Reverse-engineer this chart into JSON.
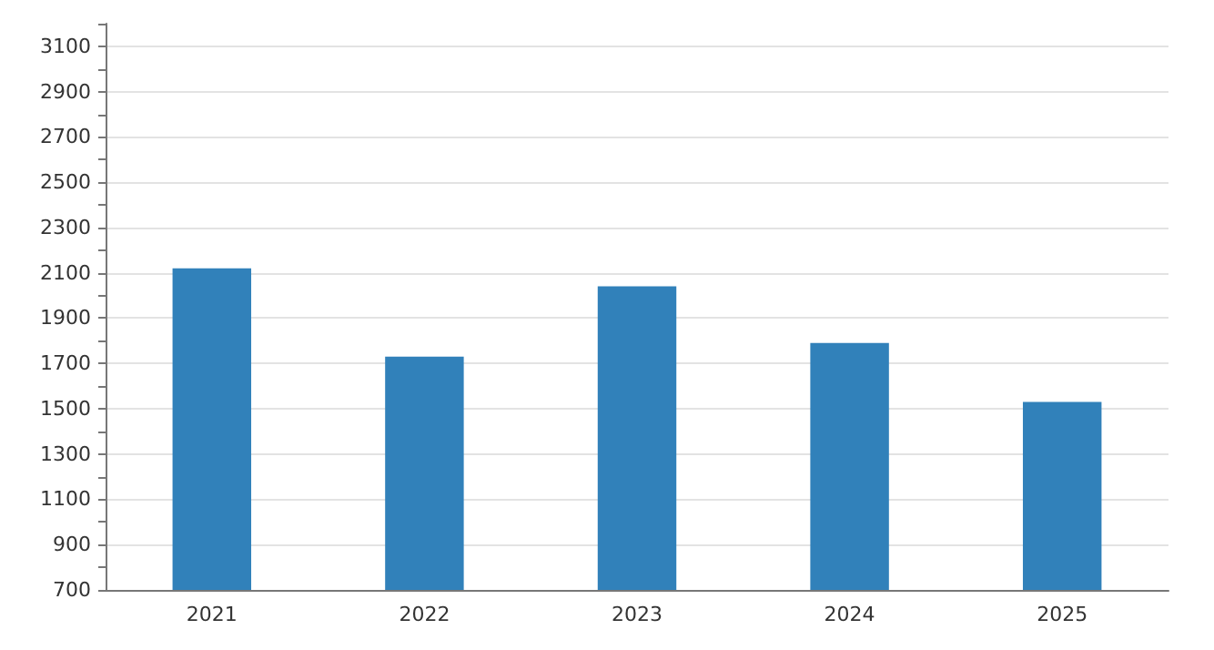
{
  "chart_data": {
    "type": "bar",
    "categories": [
      "2021",
      "2022",
      "2023",
      "2024",
      "2025"
    ],
    "values": [
      2120,
      1730,
      2040,
      1790,
      1530
    ],
    "color": "#3181ba",
    "ylim": [
      700,
      3200
    ],
    "yticks": [
      700,
      {
        "value": 800,
        "label": null
      },
      900,
      {
        "value": 1000,
        "label": null
      },
      1100,
      {
        "value": 1200,
        "label": null
      },
      1300,
      {
        "value": 1400,
        "label": null
      },
      1500,
      {
        "value": 1600,
        "label": null
      },
      1700,
      {
        "value": 1800,
        "label": null
      },
      1900,
      {
        "value": 2000,
        "label": null
      },
      2100,
      {
        "value": 2200,
        "label": null
      },
      2300,
      {
        "value": 2400,
        "label": null
      },
      2500,
      {
        "value": 2600,
        "label": null
      },
      2700,
      {
        "value": 2800,
        "label": null
      },
      2900,
      {
        "value": 3000,
        "label": null
      },
      3100,
      {
        "value": 3200,
        "label": null
      }
    ],
    "grid": "y"
  }
}
